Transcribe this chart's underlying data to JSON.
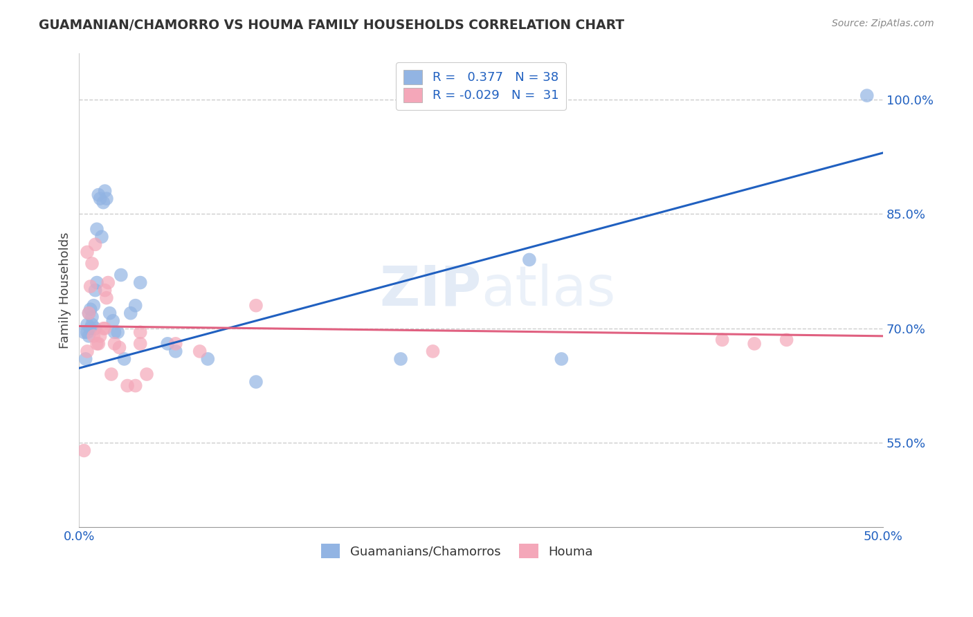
{
  "title": "GUAMANIAN/CHAMORRO VS HOUMA FAMILY HOUSEHOLDS CORRELATION CHART",
  "source": "Source: ZipAtlas.com",
  "ylabel": "Family Households",
  "ytick_labels": [
    "55.0%",
    "70.0%",
    "85.0%",
    "100.0%"
  ],
  "ytick_values": [
    0.55,
    0.7,
    0.85,
    1.0
  ],
  "xlim": [
    0.0,
    0.5
  ],
  "ylim": [
    0.44,
    1.06
  ],
  "legend_blue_r": "0.377",
  "legend_blue_n": "38",
  "legend_pink_r": "-0.029",
  "legend_pink_n": "31",
  "blue_color": "#92b4e3",
  "pink_color": "#f4a7b9",
  "line_blue": "#2060c0",
  "line_pink": "#e06080",
  "watermark_zip": "ZIP",
  "watermark_atlas": "atlas",
  "blue_scatter_x": [
    0.003,
    0.004,
    0.005,
    0.005,
    0.006,
    0.006,
    0.007,
    0.007,
    0.008,
    0.008,
    0.009,
    0.01,
    0.01,
    0.011,
    0.011,
    0.012,
    0.013,
    0.014,
    0.015,
    0.016,
    0.017,
    0.019,
    0.021,
    0.022,
    0.024,
    0.026,
    0.032,
    0.035,
    0.038,
    0.055,
    0.06,
    0.08,
    0.11,
    0.2,
    0.28,
    0.3,
    0.49,
    0.028
  ],
  "blue_scatter_y": [
    0.695,
    0.66,
    0.705,
    0.695,
    0.72,
    0.69,
    0.725,
    0.7,
    0.715,
    0.705,
    0.73,
    0.75,
    0.7,
    0.76,
    0.83,
    0.875,
    0.87,
    0.82,
    0.865,
    0.88,
    0.87,
    0.72,
    0.71,
    0.695,
    0.695,
    0.77,
    0.72,
    0.73,
    0.76,
    0.68,
    0.67,
    0.66,
    0.63,
    0.66,
    0.79,
    0.66,
    1.005,
    0.66
  ],
  "pink_scatter_x": [
    0.003,
    0.005,
    0.006,
    0.007,
    0.008,
    0.009,
    0.01,
    0.011,
    0.012,
    0.013,
    0.015,
    0.016,
    0.017,
    0.018,
    0.02,
    0.022,
    0.025,
    0.03,
    0.035,
    0.038,
    0.042,
    0.06,
    0.075,
    0.11,
    0.22,
    0.4,
    0.42,
    0.44,
    0.005,
    0.016,
    0.038
  ],
  "pink_scatter_y": [
    0.54,
    0.8,
    0.72,
    0.755,
    0.785,
    0.69,
    0.81,
    0.68,
    0.68,
    0.69,
    0.7,
    0.75,
    0.74,
    0.76,
    0.64,
    0.68,
    0.675,
    0.625,
    0.625,
    0.68,
    0.64,
    0.68,
    0.67,
    0.73,
    0.67,
    0.685,
    0.68,
    0.685,
    0.67,
    0.7,
    0.695
  ],
  "blue_line_x": [
    0.0,
    0.5
  ],
  "blue_line_y": [
    0.648,
    0.93
  ],
  "pink_line_x": [
    0.0,
    0.5
  ],
  "pink_line_y": [
    0.703,
    0.69
  ]
}
